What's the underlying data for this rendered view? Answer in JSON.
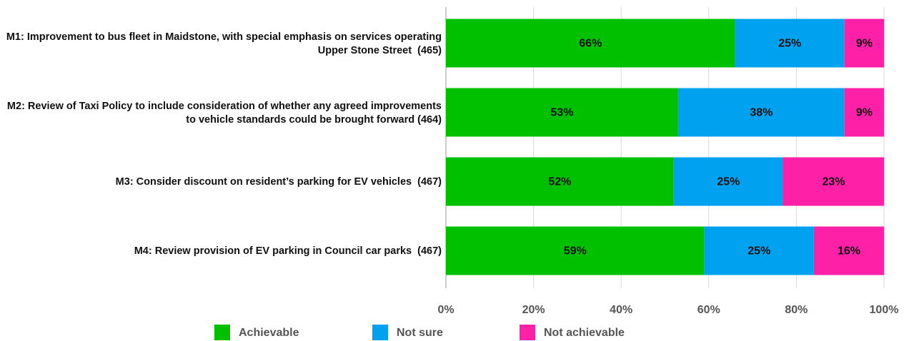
{
  "chart_data": {
    "type": "stacked-bar-horizontal",
    "categories": [
      "M1: Improvement to bus fleet in Maidstone, with special emphasis on services operating Upper Stone Street  (465)",
      "M2: Review of Taxi Policy to include consideration of whether any agreed improvements to vehicle standards could be brought forward (464)",
      "M3: Consider discount on resident’s parking for EV vehicles  (467)",
      "M4: Review provision of EV parking in Council car parks  (467)"
    ],
    "series": [
      {
        "name": "Achievable",
        "color": "#00c000",
        "values": [
          66,
          53,
          52,
          59
        ],
        "value_labels": [
          "66%",
          "53%",
          "52%",
          "59%"
        ]
      },
      {
        "name": "Not sure",
        "color": "#00a2f0",
        "values": [
          25,
          38,
          25,
          25
        ],
        "value_labels": [
          "25%",
          "38%",
          "25%",
          "25%"
        ]
      },
      {
        "name": "Not achievable",
        "color": "#ff20a8",
        "values": [
          9,
          9,
          23,
          16
        ],
        "value_labels": [
          "9%",
          "9%",
          "23%",
          "16%"
        ]
      }
    ],
    "xlim": [
      0,
      100
    ],
    "xticks": [
      {
        "value": 0,
        "label": "0%"
      },
      {
        "value": 20,
        "label": "20%"
      },
      {
        "value": 40,
        "label": "40%"
      },
      {
        "value": 60,
        "label": "60%"
      },
      {
        "value": 80,
        "label": "80%"
      },
      {
        "value": 100,
        "label": "100%"
      }
    ],
    "grid": true,
    "legend": "bottom"
  }
}
